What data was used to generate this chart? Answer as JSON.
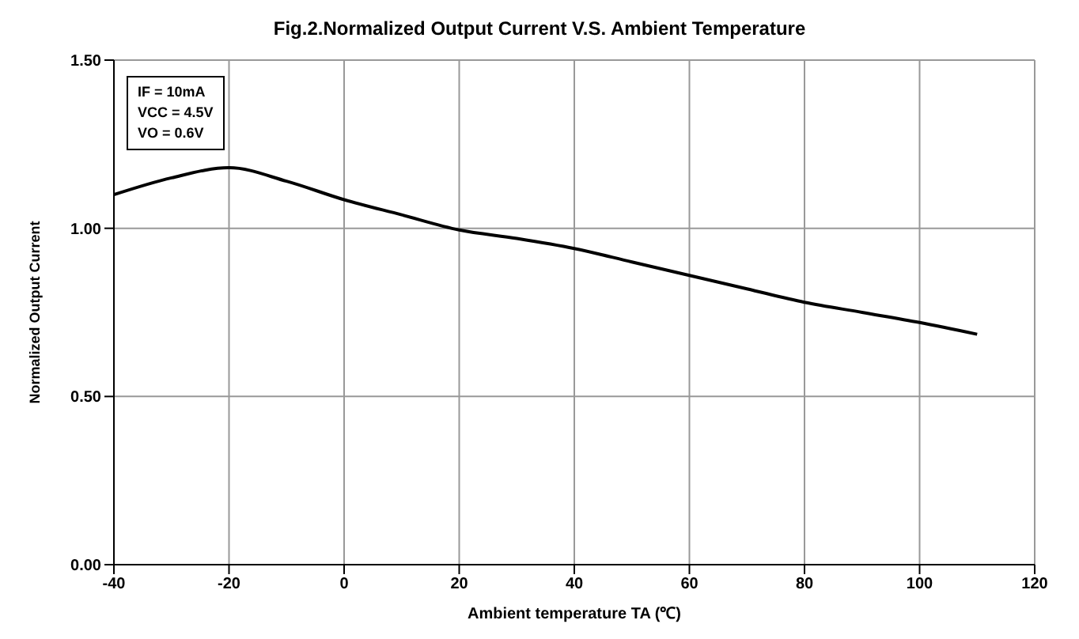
{
  "chart_data": {
    "type": "line",
    "title": "Fig.2.Normalized Output Current V.S. Ambient Temperature",
    "xlabel": "Ambient temperature TA (℃)",
    "ylabel": "Normalized Output Current",
    "annotations": [
      "IF = 10mA",
      "VCC = 4.5V",
      "VO = 0.6V"
    ],
    "x": [
      -40,
      -30,
      -20,
      -10,
      0,
      10,
      20,
      30,
      40,
      50,
      60,
      70,
      80,
      90,
      100,
      110
    ],
    "series": [
      {
        "color": "#000000",
        "values": [
          1.1,
          1.15,
          1.18,
          1.14,
          1.085,
          1.04,
          0.995,
          0.97,
          0.94,
          0.9,
          0.86,
          0.82,
          0.78,
          0.75,
          0.72,
          0.685
        ]
      }
    ],
    "xlim": [
      -40,
      120
    ],
    "xticks": [
      -40,
      -20,
      0,
      20,
      40,
      60,
      80,
      100,
      120
    ],
    "ylim": [
      0,
      1.5
    ],
    "yticks": [
      {
        "value": 0,
        "label": "0.00"
      },
      {
        "value": 0.5,
        "label": "0.50"
      },
      {
        "value": 1,
        "label": "1.00"
      },
      {
        "value": 1.5,
        "label": "1.50"
      }
    ],
    "grid": true,
    "marker": "none",
    "line_style": "solid"
  }
}
